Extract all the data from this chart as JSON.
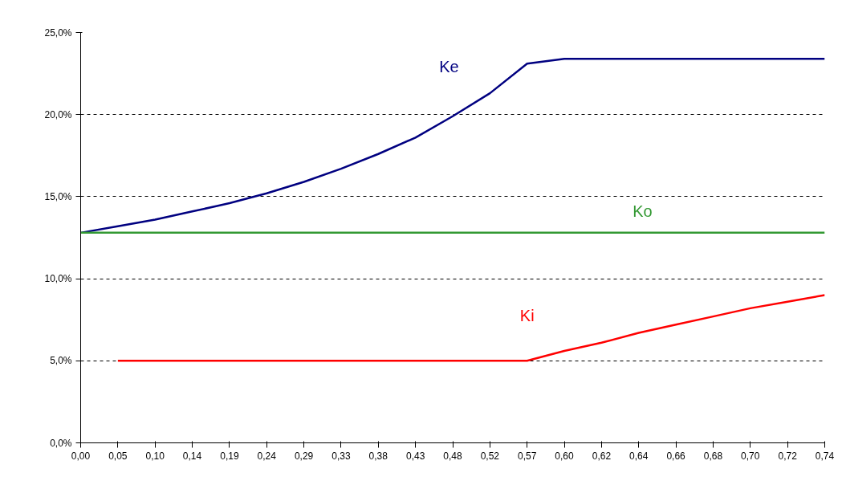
{
  "chart_data": {
    "type": "line",
    "categories": [
      "0,00",
      "0,05",
      "0,10",
      "0,14",
      "0,19",
      "0,24",
      "0,29",
      "0,33",
      "0,38",
      "0,43",
      "0,48",
      "0,52",
      "0,57",
      "0,60",
      "0,62",
      "0,64",
      "0,66",
      "0,68",
      "0,70",
      "0,72",
      "0,74"
    ],
    "series": [
      {
        "name": "Ke",
        "color": "#000080",
        "values": [
          12.8,
          13.2,
          13.6,
          14.1,
          14.6,
          15.2,
          15.9,
          16.7,
          17.6,
          18.6,
          19.9,
          21.3,
          23.1,
          23.4,
          23.4,
          23.4,
          23.4,
          23.4,
          23.4,
          23.4,
          23.4
        ]
      },
      {
        "name": "Ko",
        "color": "#339933",
        "values": [
          12.8,
          12.8,
          12.8,
          12.8,
          12.8,
          12.8,
          12.8,
          12.8,
          12.8,
          12.8,
          12.8,
          12.8,
          12.8,
          12.8,
          12.8,
          12.8,
          12.8,
          12.8,
          12.8,
          12.8,
          12.8
        ]
      },
      {
        "name": "Ki",
        "color": "#ff0000",
        "values": [
          null,
          5.0,
          5.0,
          5.0,
          5.0,
          5.0,
          5.0,
          5.0,
          5.0,
          5.0,
          5.0,
          5.0,
          5.0,
          5.6,
          6.1,
          6.7,
          7.2,
          7.7,
          8.2,
          8.6,
          9.0
        ]
      }
    ],
    "ylim": [
      0,
      25
    ],
    "yticks": [
      {
        "value": 0,
        "label": "0,0%"
      },
      {
        "value": 5,
        "label": "5,0%"
      },
      {
        "value": 10,
        "label": "10,0%"
      },
      {
        "value": 15,
        "label": "15,0%"
      },
      {
        "value": 20,
        "label": "20,0%"
      },
      {
        "value": 25,
        "label": "25,0%"
      }
    ],
    "grid": "y",
    "marker": "none",
    "line_style": "solid"
  }
}
